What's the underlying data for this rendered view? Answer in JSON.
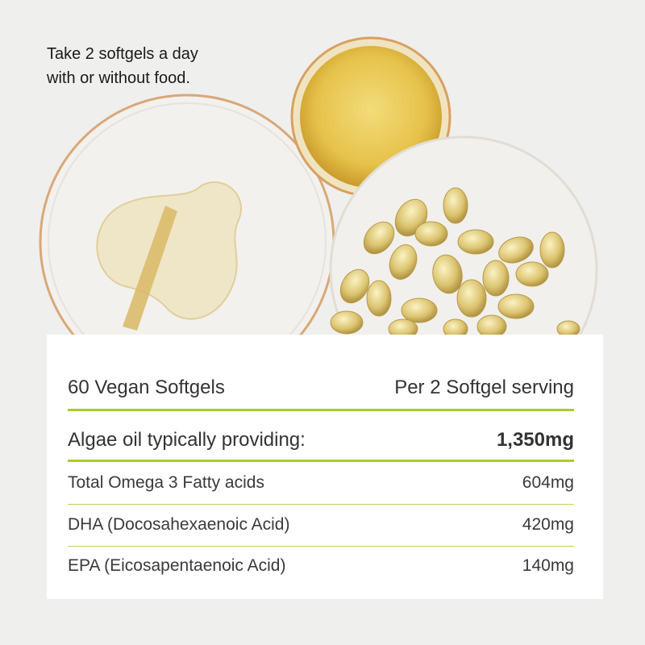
{
  "instruction": {
    "line1": "Take 2 softgels a day",
    "line2": "with or without food."
  },
  "table": {
    "header": {
      "left": "60 Vegan Softgels",
      "right": "Per 2 Softgel serving"
    },
    "main": {
      "label": "Algae oil typically providing:",
      "value": "1,350mg"
    },
    "rows": [
      {
        "label": "Total Omega 3 Fatty acids",
        "value": "604mg"
      },
      {
        "label": "DHA (Docosahexaenoic Acid)",
        "value": "420mg"
      },
      {
        "label": "EPA (Eicosapentaenoic Acid)",
        "value": "140mg"
      }
    ]
  },
  "colors": {
    "accent": "#a9cc2b",
    "text": "#333333",
    "background": "#efefee"
  }
}
